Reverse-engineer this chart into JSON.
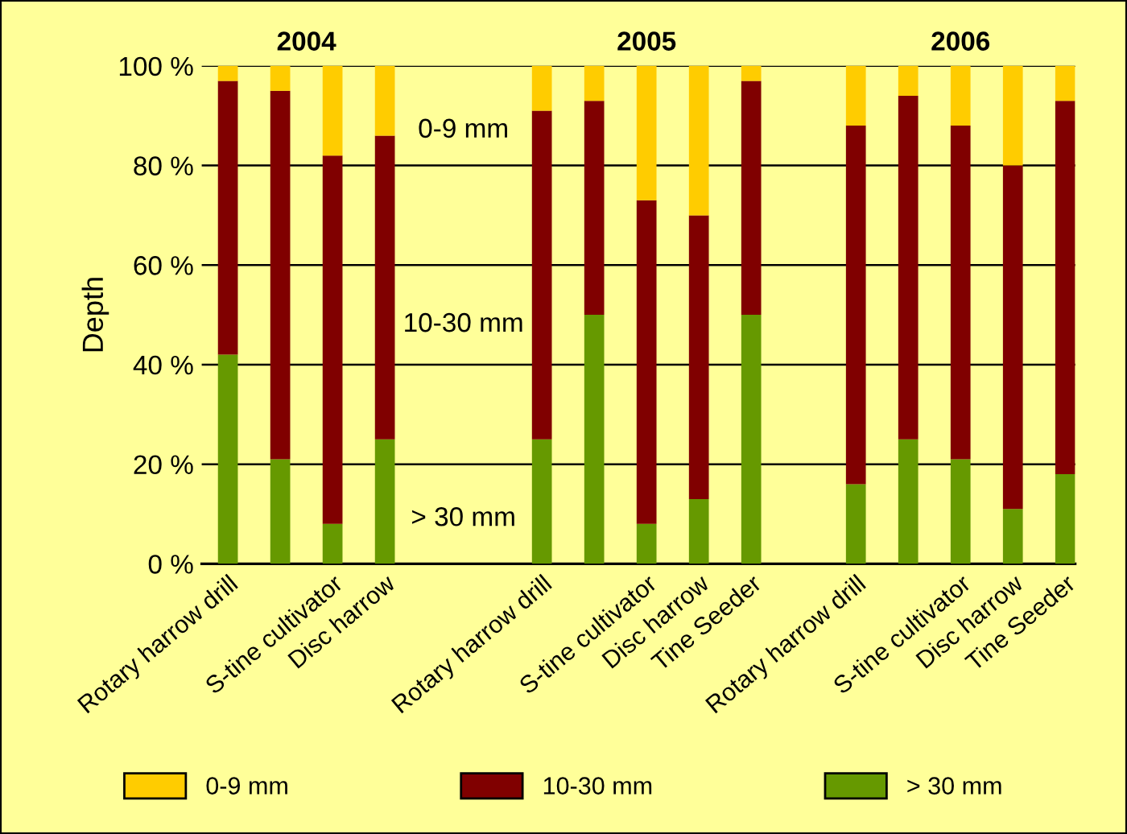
{
  "chart_data": {
    "type": "bar",
    "stacked": true,
    "ylabel": "Depth",
    "categories": [
      "Rotary harrow drill",
      null,
      "S-tine cultivator",
      "Disc harrow",
      null,
      null,
      "Rotary harrow drill",
      null,
      "S-tine cultivator",
      "Disc harrow",
      "Tine Seeder",
      null,
      "Rotary harrow drill",
      null,
      "S-tine cultivator",
      "Disc harrow",
      "Tine Seeder"
    ],
    "series": [
      {
        "name": "> 30 mm",
        "color": "#669900",
        "values": [
          42,
          21,
          8,
          25,
          null,
          null,
          25,
          50,
          8,
          13,
          50,
          null,
          16,
          25,
          21,
          11,
          18
        ]
      },
      {
        "name": "10-30 mm",
        "color": "#800000",
        "values": [
          55,
          74,
          74,
          61,
          null,
          null,
          66,
          43,
          65,
          57,
          47,
          null,
          72,
          69,
          67,
          69,
          75
        ]
      },
      {
        "name": "0-9 mm",
        "color": "#ffcc00",
        "values": [
          3,
          5,
          18,
          14,
          null,
          null,
          9,
          7,
          27,
          30,
          3,
          null,
          12,
          6,
          12,
          20,
          7
        ]
      }
    ],
    "ylim": [
      0,
      100
    ],
    "yticks": [
      {
        "value": 0,
        "label": "0 %"
      },
      {
        "value": 20,
        "label": "20 %"
      },
      {
        "value": 40,
        "label": "40 %"
      },
      {
        "value": 60,
        "label": "60 %"
      },
      {
        "value": 80,
        "label": "80 %"
      },
      {
        "value": 100,
        "label": "100 %"
      }
    ],
    "grid": "y",
    "legend": "bottom",
    "annotations": [
      "2004",
      "2005",
      "2006",
      "0-9 mm",
      "10-30 mm",
      "> 30 mm"
    ]
  }
}
